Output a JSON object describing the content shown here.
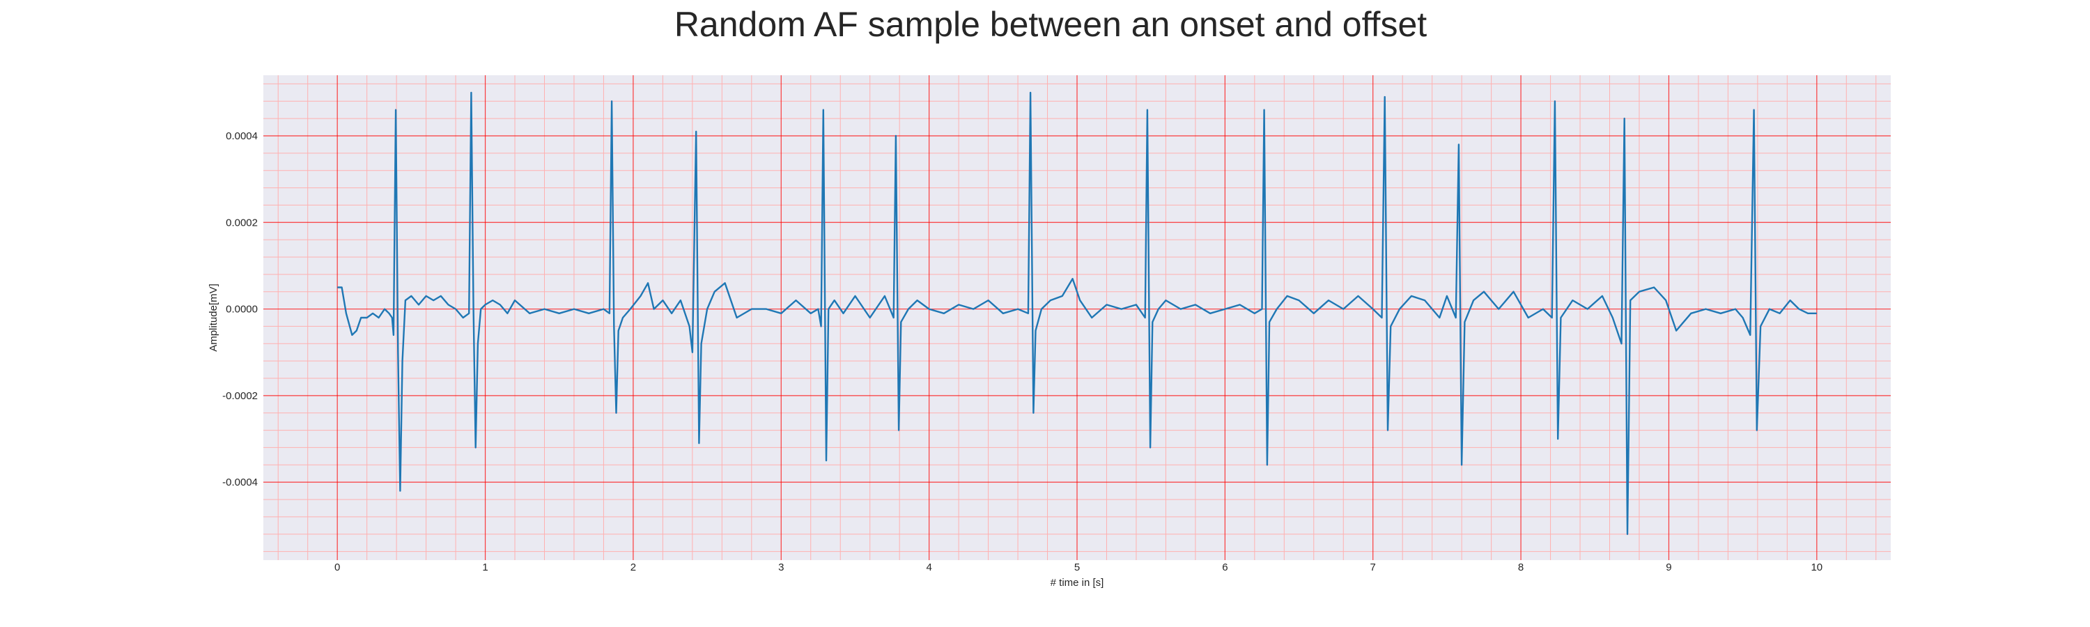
{
  "chart_data": {
    "type": "line",
    "title": "Random AF sample between an onset and offset",
    "xlabel": "# time in [s]",
    "ylabel": "Amplitude[mV]",
    "xlim": [
      -0.5,
      10.5
    ],
    "ylim": [
      -0.00058,
      0.00054
    ],
    "xticks": [
      0,
      1,
      2,
      3,
      4,
      5,
      6,
      7,
      8,
      9,
      10
    ],
    "xtick_labels": [
      "0",
      "1",
      "2",
      "3",
      "4",
      "5",
      "6",
      "7",
      "8",
      "9",
      "10"
    ],
    "yticks": [
      -0.0004,
      -0.0002,
      0.0,
      0.0002,
      0.0004
    ],
    "ytick_labels": [
      "-0.0004",
      "-0.0002",
      "0.0000",
      "0.0002",
      "0.0004"
    ],
    "grid": true,
    "minor_grid": true,
    "legend": "none",
    "colors": {
      "line": "#1f77b4",
      "plot_background": "#eaeaf2",
      "major_grid": "#ff0000",
      "minor_grid": "#ffb0b0"
    },
    "series": [
      {
        "points": [
          [
            0.0,
            5e-05
          ],
          [
            0.03,
            5e-05
          ],
          [
            0.06,
            -1e-05
          ],
          [
            0.1,
            -6e-05
          ],
          [
            0.13,
            -5e-05
          ],
          [
            0.16,
            -2e-05
          ],
          [
            0.2,
            -2e-05
          ],
          [
            0.24,
            -1e-05
          ],
          [
            0.28,
            -2e-05
          ],
          [
            0.32,
            0.0
          ],
          [
            0.35,
            -1e-05
          ],
          [
            0.37,
            -2e-05
          ],
          [
            0.38,
            -6e-05
          ],
          [
            0.395,
            0.00046
          ],
          [
            0.41,
            -0.0001
          ],
          [
            0.425,
            -0.00042
          ],
          [
            0.44,
            -0.00012
          ],
          [
            0.46,
            2e-05
          ],
          [
            0.5,
            3e-05
          ],
          [
            0.55,
            1e-05
          ],
          [
            0.6,
            3e-05
          ],
          [
            0.65,
            2e-05
          ],
          [
            0.7,
            3e-05
          ],
          [
            0.75,
            1e-05
          ],
          [
            0.8,
            0.0
          ],
          [
            0.85,
            -2e-05
          ],
          [
            0.89,
            -1e-05
          ],
          [
            0.905,
            0.0005
          ],
          [
            0.92,
            0.0
          ],
          [
            0.935,
            -0.00032
          ],
          [
            0.95,
            -8e-05
          ],
          [
            0.97,
            0.0
          ],
          [
            1.0,
            1e-05
          ],
          [
            1.05,
            2e-05
          ],
          [
            1.1,
            1e-05
          ],
          [
            1.15,
            -1e-05
          ],
          [
            1.2,
            2e-05
          ],
          [
            1.3,
            -1e-05
          ],
          [
            1.4,
            0.0
          ],
          [
            1.5,
            -1e-05
          ],
          [
            1.6,
            0.0
          ],
          [
            1.7,
            -1e-05
          ],
          [
            1.8,
            0.0
          ],
          [
            1.84,
            -1e-05
          ],
          [
            1.855,
            0.00048
          ],
          [
            1.87,
            -4e-05
          ],
          [
            1.885,
            -0.00024
          ],
          [
            1.9,
            -5e-05
          ],
          [
            1.93,
            -2e-05
          ],
          [
            1.98,
            0.0
          ],
          [
            2.05,
            3e-05
          ],
          [
            2.1,
            6e-05
          ],
          [
            2.14,
            0.0
          ],
          [
            2.2,
            2e-05
          ],
          [
            2.26,
            -1e-05
          ],
          [
            2.32,
            2e-05
          ],
          [
            2.38,
            -4e-05
          ],
          [
            2.4,
            -0.0001
          ],
          [
            2.425,
            0.00041
          ],
          [
            2.445,
            -0.00031
          ],
          [
            2.46,
            -8e-05
          ],
          [
            2.5,
            0.0
          ],
          [
            2.55,
            4e-05
          ],
          [
            2.62,
            6e-05
          ],
          [
            2.7,
            -2e-05
          ],
          [
            2.8,
            0.0
          ],
          [
            2.9,
            0.0
          ],
          [
            3.0,
            -1e-05
          ],
          [
            3.1,
            2e-05
          ],
          [
            3.2,
            -1e-05
          ],
          [
            3.25,
            0.0
          ],
          [
            3.27,
            -4e-05
          ],
          [
            3.285,
            0.00046
          ],
          [
            3.305,
            -0.00035
          ],
          [
            3.32,
            0.0
          ],
          [
            3.36,
            2e-05
          ],
          [
            3.42,
            -1e-05
          ],
          [
            3.5,
            3e-05
          ],
          [
            3.6,
            -2e-05
          ],
          [
            3.7,
            3e-05
          ],
          [
            3.76,
            -2e-05
          ],
          [
            3.775,
            0.0004
          ],
          [
            3.795,
            -0.00028
          ],
          [
            3.81,
            -3e-05
          ],
          [
            3.86,
            0.0
          ],
          [
            3.92,
            2e-05
          ],
          [
            4.0,
            0.0
          ],
          [
            4.1,
            -1e-05
          ],
          [
            4.2,
            1e-05
          ],
          [
            4.3,
            0.0
          ],
          [
            4.4,
            2e-05
          ],
          [
            4.5,
            -1e-05
          ],
          [
            4.6,
            0.0
          ],
          [
            4.67,
            -1e-05
          ],
          [
            4.685,
            0.0005
          ],
          [
            4.705,
            -0.00024
          ],
          [
            4.72,
            -5e-05
          ],
          [
            4.76,
            0.0
          ],
          [
            4.82,
            2e-05
          ],
          [
            4.9,
            3e-05
          ],
          [
            4.97,
            7e-05
          ],
          [
            5.02,
            2e-05
          ],
          [
            5.1,
            -2e-05
          ],
          [
            5.2,
            1e-05
          ],
          [
            5.3,
            0.0
          ],
          [
            5.4,
            1e-05
          ],
          [
            5.46,
            -2e-05
          ],
          [
            5.475,
            0.00046
          ],
          [
            5.495,
            -0.00032
          ],
          [
            5.51,
            -3e-05
          ],
          [
            5.55,
            0.0
          ],
          [
            5.6,
            2e-05
          ],
          [
            5.7,
            0.0
          ],
          [
            5.8,
            1e-05
          ],
          [
            5.9,
            -1e-05
          ],
          [
            6.0,
            0.0
          ],
          [
            6.1,
            1e-05
          ],
          [
            6.2,
            -1e-05
          ],
          [
            6.25,
            0.0
          ],
          [
            6.265,
            0.00046
          ],
          [
            6.285,
            -0.00036
          ],
          [
            6.3,
            -3e-05
          ],
          [
            6.35,
            0.0
          ],
          [
            6.42,
            3e-05
          ],
          [
            6.5,
            2e-05
          ],
          [
            6.6,
            -1e-05
          ],
          [
            6.7,
            2e-05
          ],
          [
            6.8,
            0.0
          ],
          [
            6.9,
            3e-05
          ],
          [
            7.0,
            0.0
          ],
          [
            7.06,
            -2e-05
          ],
          [
            7.08,
            0.00049
          ],
          [
            7.1,
            -0.00028
          ],
          [
            7.12,
            -4e-05
          ],
          [
            7.18,
            0.0
          ],
          [
            7.26,
            3e-05
          ],
          [
            7.35,
            2e-05
          ],
          [
            7.45,
            -2e-05
          ],
          [
            7.5,
            3e-05
          ],
          [
            7.56,
            -2e-05
          ],
          [
            7.58,
            0.00038
          ],
          [
            7.6,
            -0.00036
          ],
          [
            7.62,
            -3e-05
          ],
          [
            7.68,
            2e-05
          ],
          [
            7.75,
            4e-05
          ],
          [
            7.85,
            0.0
          ],
          [
            7.95,
            4e-05
          ],
          [
            8.05,
            -2e-05
          ],
          [
            8.15,
            0.0
          ],
          [
            8.21,
            -2e-05
          ],
          [
            8.23,
            0.00048
          ],
          [
            8.25,
            -0.0003
          ],
          [
            8.27,
            -2e-05
          ],
          [
            8.35,
            2e-05
          ],
          [
            8.45,
            0.0
          ],
          [
            8.55,
            3e-05
          ],
          [
            8.62,
            -2e-05
          ],
          [
            8.68,
            -8e-05
          ],
          [
            8.7,
            0.00044
          ],
          [
            8.72,
            -0.00052
          ],
          [
            8.74,
            2e-05
          ],
          [
            8.8,
            4e-05
          ],
          [
            8.9,
            5e-05
          ],
          [
            8.98,
            2e-05
          ],
          [
            9.05,
            -5e-05
          ],
          [
            9.15,
            -1e-05
          ],
          [
            9.25,
            0.0
          ],
          [
            9.35,
            -1e-05
          ],
          [
            9.45,
            0.0
          ],
          [
            9.5,
            -2e-05
          ],
          [
            9.55,
            -6e-05
          ],
          [
            9.575,
            0.00046
          ],
          [
            9.595,
            -0.00028
          ],
          [
            9.62,
            -4e-05
          ],
          [
            9.68,
            0.0
          ],
          [
            9.75,
            -1e-05
          ],
          [
            9.82,
            2e-05
          ],
          [
            9.88,
            0.0
          ],
          [
            9.94,
            -1e-05
          ],
          [
            10.0,
            -1e-05
          ]
        ]
      }
    ]
  }
}
